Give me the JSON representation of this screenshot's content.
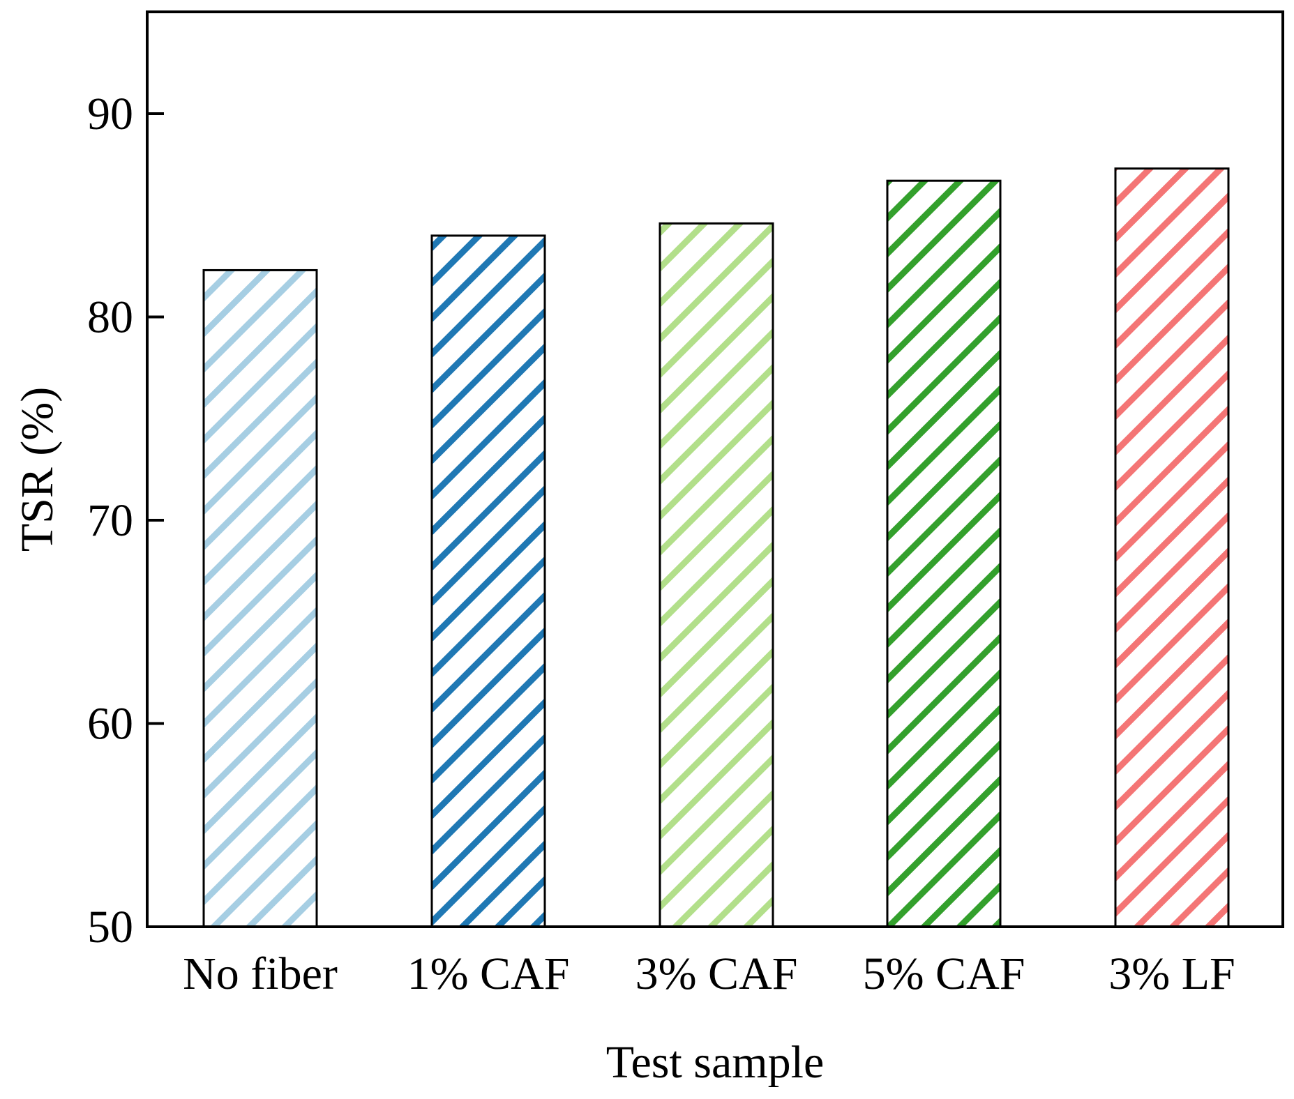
{
  "chart_data": {
    "type": "bar",
    "title": "",
    "xlabel": "Test sample",
    "ylabel": "TSR (%)",
    "categories": [
      "No fiber",
      "1% CAF",
      "3% CAF",
      "5% CAF",
      "3% LF"
    ],
    "values": [
      82.3,
      84.0,
      84.6,
      86.7,
      87.3
    ],
    "ylim": [
      50,
      95
    ],
    "yticks": [
      50,
      60,
      70,
      80,
      90
    ],
    "ytick_labels": [
      "50",
      "60",
      "70",
      "80",
      "90"
    ],
    "grid": false,
    "legend": null,
    "bar_colors": [
      "#a6cee3",
      "#1f78b4",
      "#b2df8a",
      "#33a02c",
      "#f47575"
    ],
    "fill_pattern": "diagonal-hatch"
  }
}
